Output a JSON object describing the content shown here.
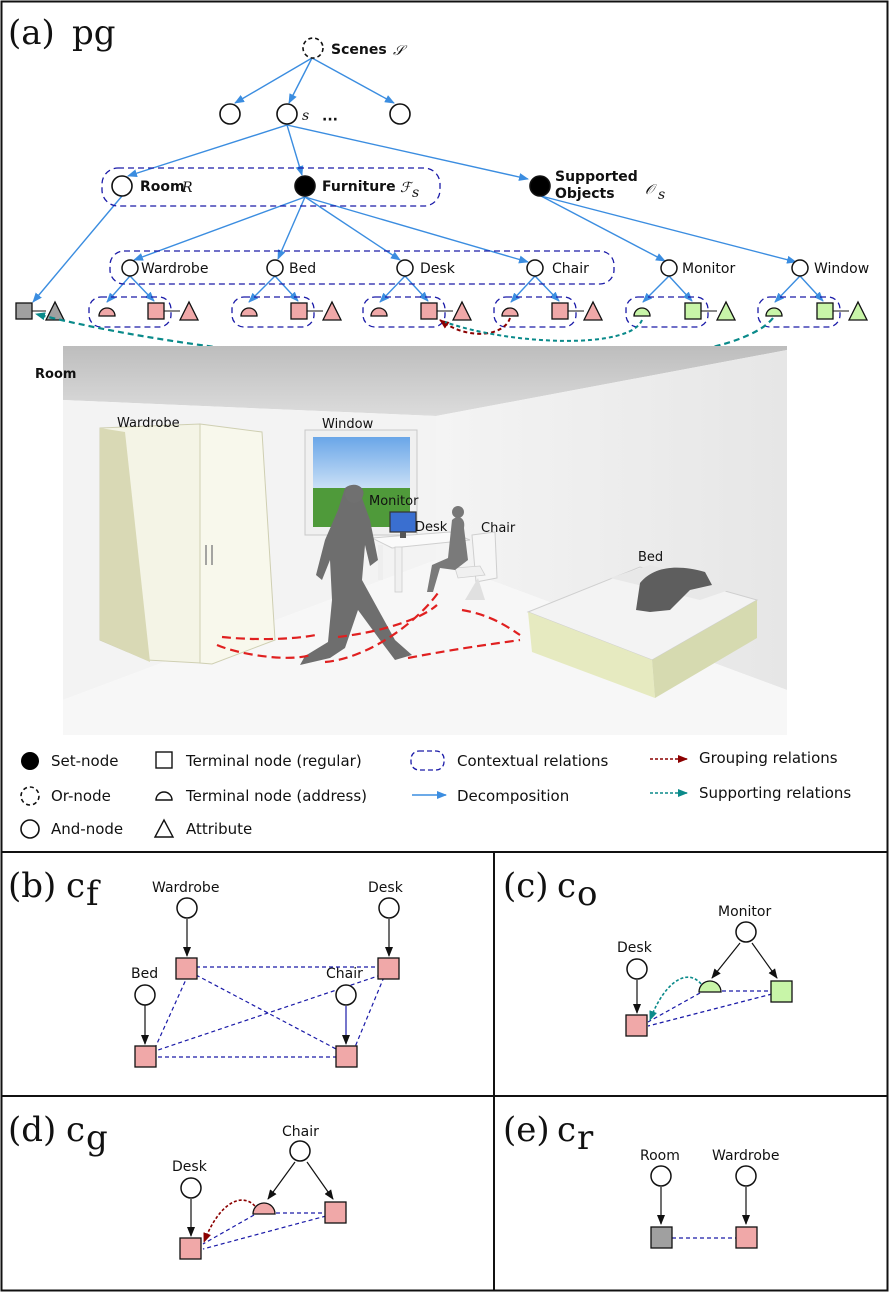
{
  "panel_a": {
    "tag": "(a)",
    "math": "pg",
    "nodes": {
      "scenes_label": "Scenes",
      "scenes_math": "𝒮",
      "s_math": "s",
      "ellipsis": "···",
      "room_label": "Room",
      "room_math": "R",
      "furniture_label": "Furniture",
      "furniture_math": "ℱ",
      "furniture_sub": "s",
      "supported_label_1": "Supported",
      "supported_label_2": "Objects",
      "supported_math": "𝒪",
      "supported_sub": "s",
      "wardrobe": "Wardrobe",
      "bed": "Bed",
      "desk": "Desk",
      "chair": "Chair",
      "monitor": "Monitor",
      "window": "Window"
    },
    "scene_labels": {
      "room": "Room",
      "wardrobe": "Wardrobe",
      "window": "Window",
      "monitor": "Monitor",
      "desk": "Desk",
      "chair": "Chair",
      "bed": "Bed"
    },
    "legend": {
      "set_node": "Set-node",
      "or_node": "Or-node",
      "and_node": "And-node",
      "terminal_regular": "Terminal node (regular)",
      "terminal_address": "Terminal node (address)",
      "attribute": "Attribute",
      "contextual": "Contextual relations",
      "decomposition": "Decomposition",
      "grouping": "Grouping relations",
      "supporting": "Supporting relations"
    }
  },
  "panel_b": {
    "tag": "(b)",
    "math": "c",
    "sub": "f",
    "wardrobe": "Wardrobe",
    "desk": "Desk",
    "bed": "Bed",
    "chair": "Chair"
  },
  "panel_c": {
    "tag": "(c)",
    "math": "c",
    "sub": "o",
    "monitor": "Monitor",
    "desk": "Desk"
  },
  "panel_d": {
    "tag": "(d)",
    "math": "c",
    "sub": "g",
    "chair": "Chair",
    "desk": "Desk"
  },
  "panel_e": {
    "tag": "(e)",
    "math": "c",
    "sub": "r",
    "room": "Room",
    "wardrobe": "Wardrobe"
  },
  "colors": {
    "decomposition": "#3b8de0",
    "contextual": "#1a1aa8",
    "grouping": "#8b0000",
    "supporting": "#0a8a8a",
    "pink": "#f0a8a8",
    "green": "#c8f5a8",
    "gray": "#a0a0a0"
  }
}
